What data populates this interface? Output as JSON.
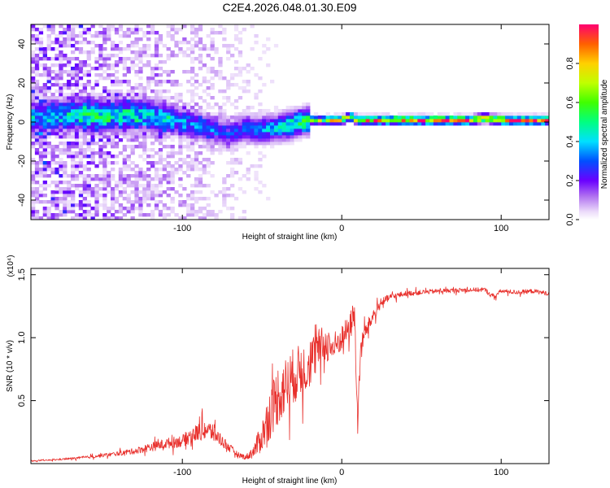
{
  "chart_data": [
    {
      "type": "heatmap",
      "title": "C2E4.2026.048.01.30.E09",
      "xlabel": "Height of straight line (km)",
      "ylabel": "Frequency (Hz)",
      "xlim": [
        -195,
        130
      ],
      "ylim": [
        -50,
        50
      ],
      "xticks": [
        -100,
        0,
        100
      ],
      "xtick_labels": [
        "-100",
        "0",
        "100"
      ],
      "yticks": [
        -40,
        -20,
        0,
        20,
        40
      ],
      "ytick_labels": [
        "-40",
        "-20",
        "0",
        "20",
        "40"
      ],
      "colorbar": {
        "label": "Normalized spectral amplitude",
        "range": [
          0,
          1
        ],
        "ticks": [
          0,
          0.2,
          0.4,
          0.6,
          0.8
        ],
        "tick_labels": [
          "0.0",
          "0.2",
          "0.4",
          "0.6",
          "0.8"
        ]
      },
      "ridge": {
        "x": [
          -190,
          -170,
          -150,
          -130,
          -110,
          -100,
          -90,
          -80,
          -70,
          -60,
          -50,
          -40,
          -30,
          -20,
          -10,
          0,
          5,
          10,
          20,
          40,
          60,
          80,
          90,
          100,
          130
        ],
        "frequency": [
          2,
          4,
          3,
          4,
          2,
          0,
          -2,
          -4,
          -6,
          -3,
          -4,
          -3,
          -1,
          1,
          1,
          1,
          3,
          1,
          1,
          1,
          1,
          1,
          2,
          1,
          1
        ],
        "amplitude": [
          0.3,
          0.4,
          0.45,
          0.4,
          0.4,
          0.35,
          0.3,
          0.3,
          0.25,
          0.3,
          0.35,
          0.4,
          0.5,
          0.6,
          0.7,
          0.8,
          0.75,
          0.8,
          0.9,
          0.95,
          0.95,
          0.95,
          0.9,
          0.95,
          0.95
        ]
      }
    },
    {
      "type": "line",
      "xlabel": "Height of straight line (km)",
      "ylabel": "SNR (10 * v/v)",
      "scale_label": "(x10⁴)",
      "xlim": [
        -195,
        130
      ],
      "ylim": [
        0,
        1.55
      ],
      "xticks": [
        -100,
        0,
        100
      ],
      "xtick_labels": [
        "-100",
        "0",
        "100"
      ],
      "yticks": [
        0.5,
        1.0,
        1.5
      ],
      "ytick_labels": [
        "0.5",
        "1.0",
        "1.5"
      ],
      "series": [
        {
          "name": "SNR",
          "color": "#e8302c",
          "x": [
            -195,
            -180,
            -160,
            -140,
            -130,
            -120,
            -110,
            -100,
            -95,
            -90,
            -85,
            -80,
            -75,
            -70,
            -65,
            -60,
            -55,
            -50,
            -45,
            -40,
            -35,
            -30,
            -25,
            -20,
            -15,
            -10,
            -5,
            0,
            5,
            8,
            10,
            12,
            15,
            20,
            25,
            30,
            40,
            60,
            80,
            90,
            95,
            100,
            110,
            120,
            130
          ],
          "y": [
            0.02,
            0.03,
            0.05,
            0.08,
            0.1,
            0.13,
            0.16,
            0.18,
            0.22,
            0.25,
            0.27,
            0.24,
            0.18,
            0.12,
            0.07,
            0.05,
            0.1,
            0.22,
            0.4,
            0.55,
            0.62,
            0.7,
            0.74,
            0.8,
            0.9,
            0.95,
            0.92,
            1.0,
            1.08,
            1.2,
            0.3,
            0.95,
            1.05,
            1.18,
            1.28,
            1.32,
            1.35,
            1.37,
            1.38,
            1.38,
            1.32,
            1.37,
            1.36,
            1.37,
            1.35
          ],
          "noise": [
            0.005,
            0.008,
            0.015,
            0.025,
            0.035,
            0.05,
            0.06,
            0.07,
            0.09,
            0.1,
            0.12,
            0.1,
            0.07,
            0.05,
            0.03,
            0.03,
            0.08,
            0.18,
            0.3,
            0.35,
            0.33,
            0.32,
            0.3,
            0.28,
            0.25,
            0.2,
            0.18,
            0.15,
            0.15,
            0.2,
            0.1,
            0.12,
            0.1,
            0.07,
            0.05,
            0.04,
            0.03,
            0.025,
            0.025,
            0.025,
            0.03,
            0.025,
            0.025,
            0.025,
            0.025
          ]
        }
      ]
    }
  ]
}
